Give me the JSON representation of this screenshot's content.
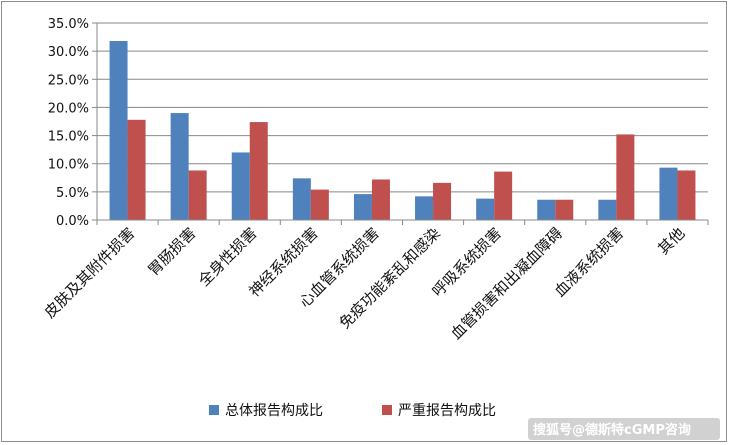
{
  "chart_data": {
    "type": "bar",
    "categories": [
      "皮肤及其附件损害",
      "胃肠损害",
      "全身性损害",
      "神经系统损害",
      "心血管系统损害",
      "免疫功能紊乱和感染",
      "呼吸系统损害",
      "血管损害和出凝血障碍",
      "血液系统损害",
      "其他"
    ],
    "series": [
      {
        "name": "总体报告构成比",
        "color": "#4f81bd",
        "values": [
          31.8,
          19.0,
          12.0,
          7.4,
          4.6,
          4.2,
          3.8,
          3.6,
          3.6,
          9.3
        ]
      },
      {
        "name": "严重报告构成比",
        "color": "#c0504d",
        "values": [
          17.8,
          8.8,
          17.4,
          5.4,
          7.2,
          6.6,
          8.6,
          3.6,
          15.2,
          8.8
        ]
      }
    ],
    "yticks": [
      "0.0%",
      "5.0%",
      "10.0%",
      "15.0%",
      "20.0%",
      "25.0%",
      "30.0%",
      "35.0%"
    ],
    "ylim": [
      0,
      35
    ],
    "grid": true,
    "legend_position": "bottom"
  },
  "watermark": "搜狐号@德斯特cGMP咨询"
}
